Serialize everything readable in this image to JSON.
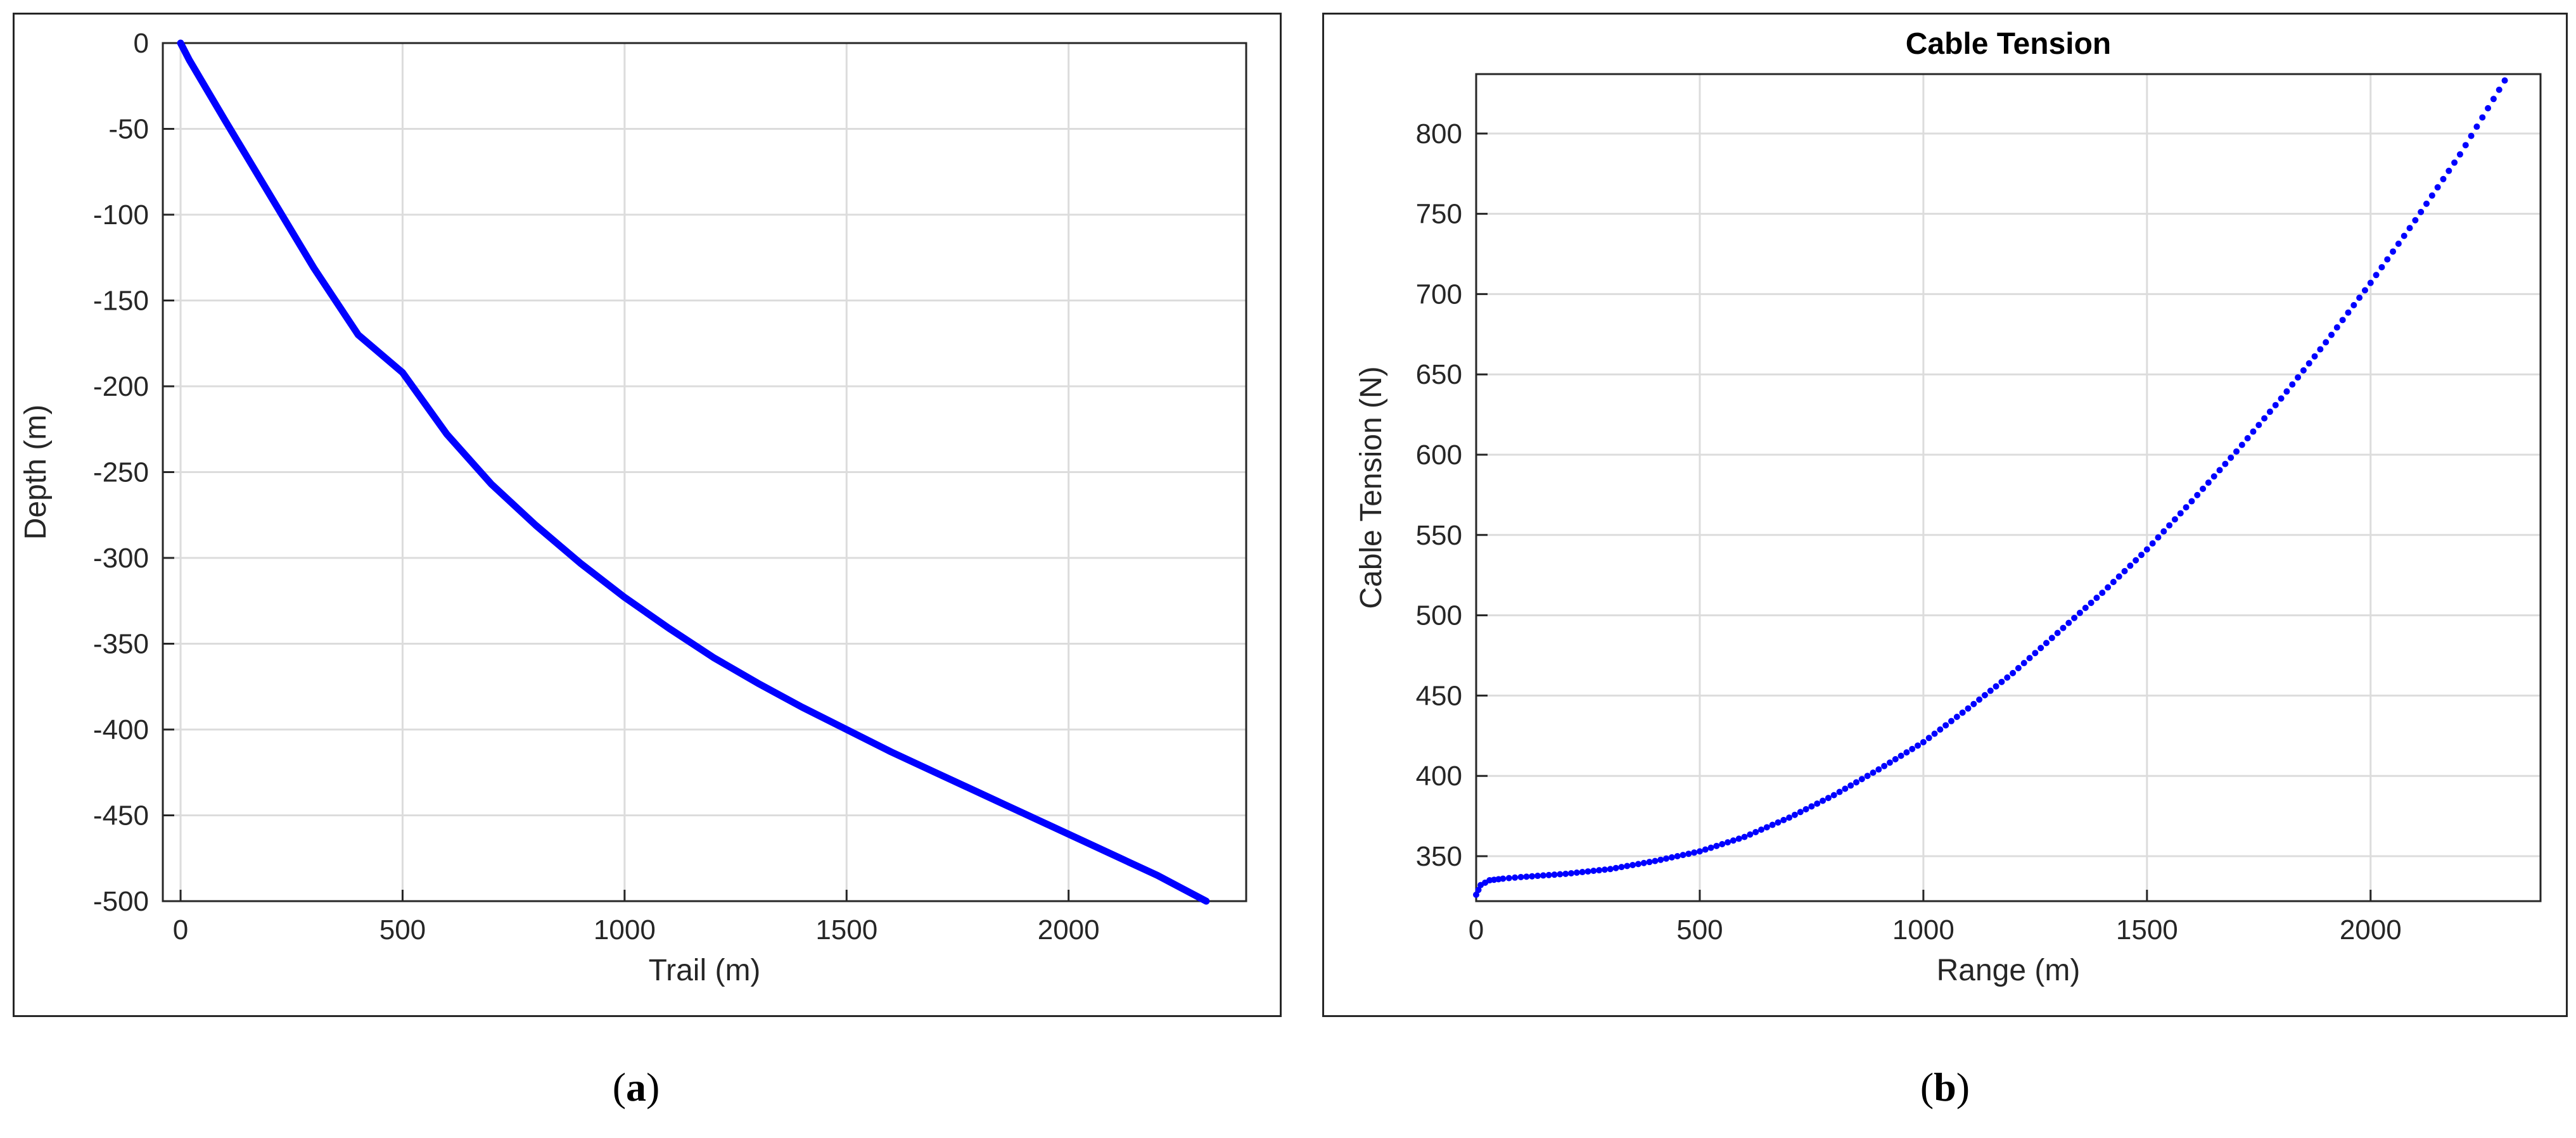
{
  "chart_data": [
    {
      "type": "line",
      "title": "",
      "xlabel": "Trail (m)",
      "ylabel": "Depth (m)",
      "xlim": [
        -40,
        2400
      ],
      "ylim": [
        -500,
        0
      ],
      "xticks": [
        0,
        500,
        1000,
        1500,
        2000
      ],
      "yticks": [
        0,
        -50,
        -100,
        -150,
        -200,
        -250,
        -300,
        -350,
        -400,
        -450,
        -500
      ],
      "grid": true,
      "color": "#0000ff",
      "series": [
        {
          "x": [
            0,
            20,
            100,
            200,
            300,
            400,
            500,
            600,
            700,
            800,
            900,
            1000,
            1100,
            1200,
            1300,
            1400,
            1500,
            1600,
            1700,
            1800,
            1900,
            2000,
            2100,
            2200,
            2310
          ],
          "y": [
            0,
            -10,
            -45,
            -88,
            -131,
            -170,
            -192,
            -228,
            -257,
            -281,
            -303,
            -323,
            -341,
            -358,
            -373,
            -387,
            -400,
            -413,
            -425,
            -437,
            -449,
            -461,
            -473,
            -485,
            -500
          ]
        }
      ]
    },
    {
      "type": "scatter",
      "title": "Cable Tension",
      "xlabel": "Range (m)",
      "ylabel": "Cable Tension (N)",
      "xlim": [
        0,
        2380
      ],
      "ylim": [
        322,
        837
      ],
      "xticks": [
        0,
        500,
        1000,
        1500,
        2000
      ],
      "yticks": [
        350,
        400,
        450,
        500,
        550,
        600,
        650,
        700,
        750,
        800
      ],
      "grid": true,
      "color": "#0000ff",
      "series": [
        {
          "x": [
            0,
            10,
            30,
            60,
            100,
            200,
            300,
            400,
            500,
            600,
            700,
            800,
            900,
            1000,
            1100,
            1200,
            1300,
            1400,
            1500,
            1600,
            1700,
            1800,
            1900,
            2000,
            2100,
            2200,
            2300
          ],
          "y": [
            326,
            332,
            335,
            336,
            337,
            339,
            342,
            347,
            353,
            362,
            374,
            388,
            404,
            421,
            442,
            464,
            489,
            514,
            541,
            571,
            602,
            635,
            670,
            707,
            746,
            787,
            833
          ]
        }
      ]
    }
  ],
  "captions": {
    "a": "a",
    "b": "b"
  }
}
